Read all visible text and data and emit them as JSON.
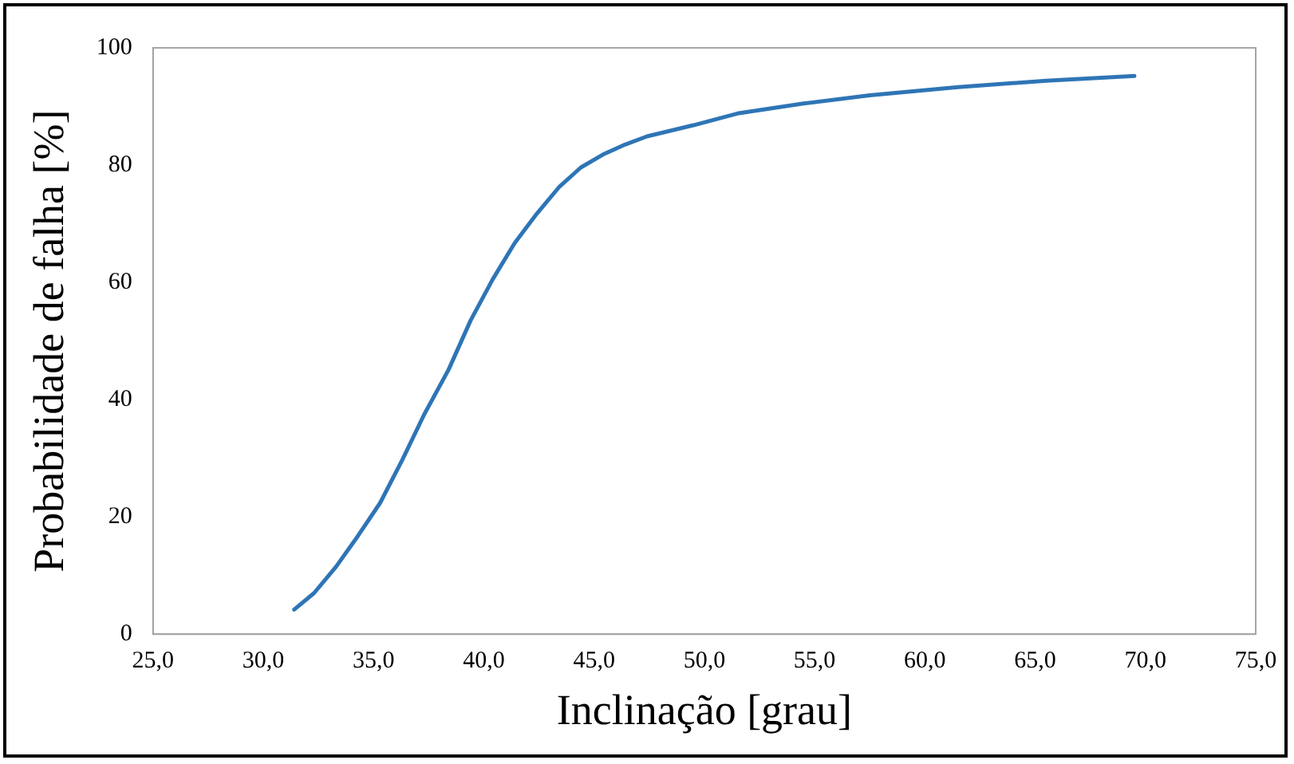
{
  "chart_data": {
    "type": "line",
    "xlabel": "Inclinação [grau]",
    "ylabel": "Probabilidade de falha [%]",
    "x": [
      31.4,
      32.3,
      33.3,
      34.3,
      35.3,
      36.3,
      37.3,
      38.4,
      39.4,
      40.4,
      41.4,
      42.4,
      43.4,
      44.4,
      45.4,
      46.4,
      47.4,
      49.5,
      51.5,
      54.5,
      57.5,
      61.5,
      65.5,
      69.5
    ],
    "series": [
      {
        "color": "#2e75b6",
        "values": [
          4.2,
          7,
          11.5,
          16.8,
          22.4,
          29.7,
          37.5,
          45.1,
          53.5,
          60.5,
          66.7,
          71.7,
          76.2,
          79.6,
          81.8,
          83.5,
          84.9,
          86.8,
          88.8,
          90.5,
          91.9,
          93.3,
          94.4,
          95.2
        ]
      }
    ],
    "xlim": [
      25,
      75
    ],
    "xticks": [
      {
        "value": 25,
        "label": "25,0"
      },
      {
        "value": 30,
        "label": "30,0"
      },
      {
        "value": 35,
        "label": "35,0"
      },
      {
        "value": 40,
        "label": "40,0"
      },
      {
        "value": 45,
        "label": "45,0"
      },
      {
        "value": 50,
        "label": "50,0"
      },
      {
        "value": 55,
        "label": "55,0"
      },
      {
        "value": 60,
        "label": "60,0"
      },
      {
        "value": 65,
        "label": "65,0"
      },
      {
        "value": 70,
        "label": "70,0"
      },
      {
        "value": 75,
        "label": "75,0"
      }
    ],
    "ylim": [
      0,
      100
    ],
    "yticks": [
      0,
      20,
      40,
      60,
      80,
      100
    ],
    "grid": false,
    "legend": false,
    "marker": "none",
    "line_style": "solid"
  }
}
